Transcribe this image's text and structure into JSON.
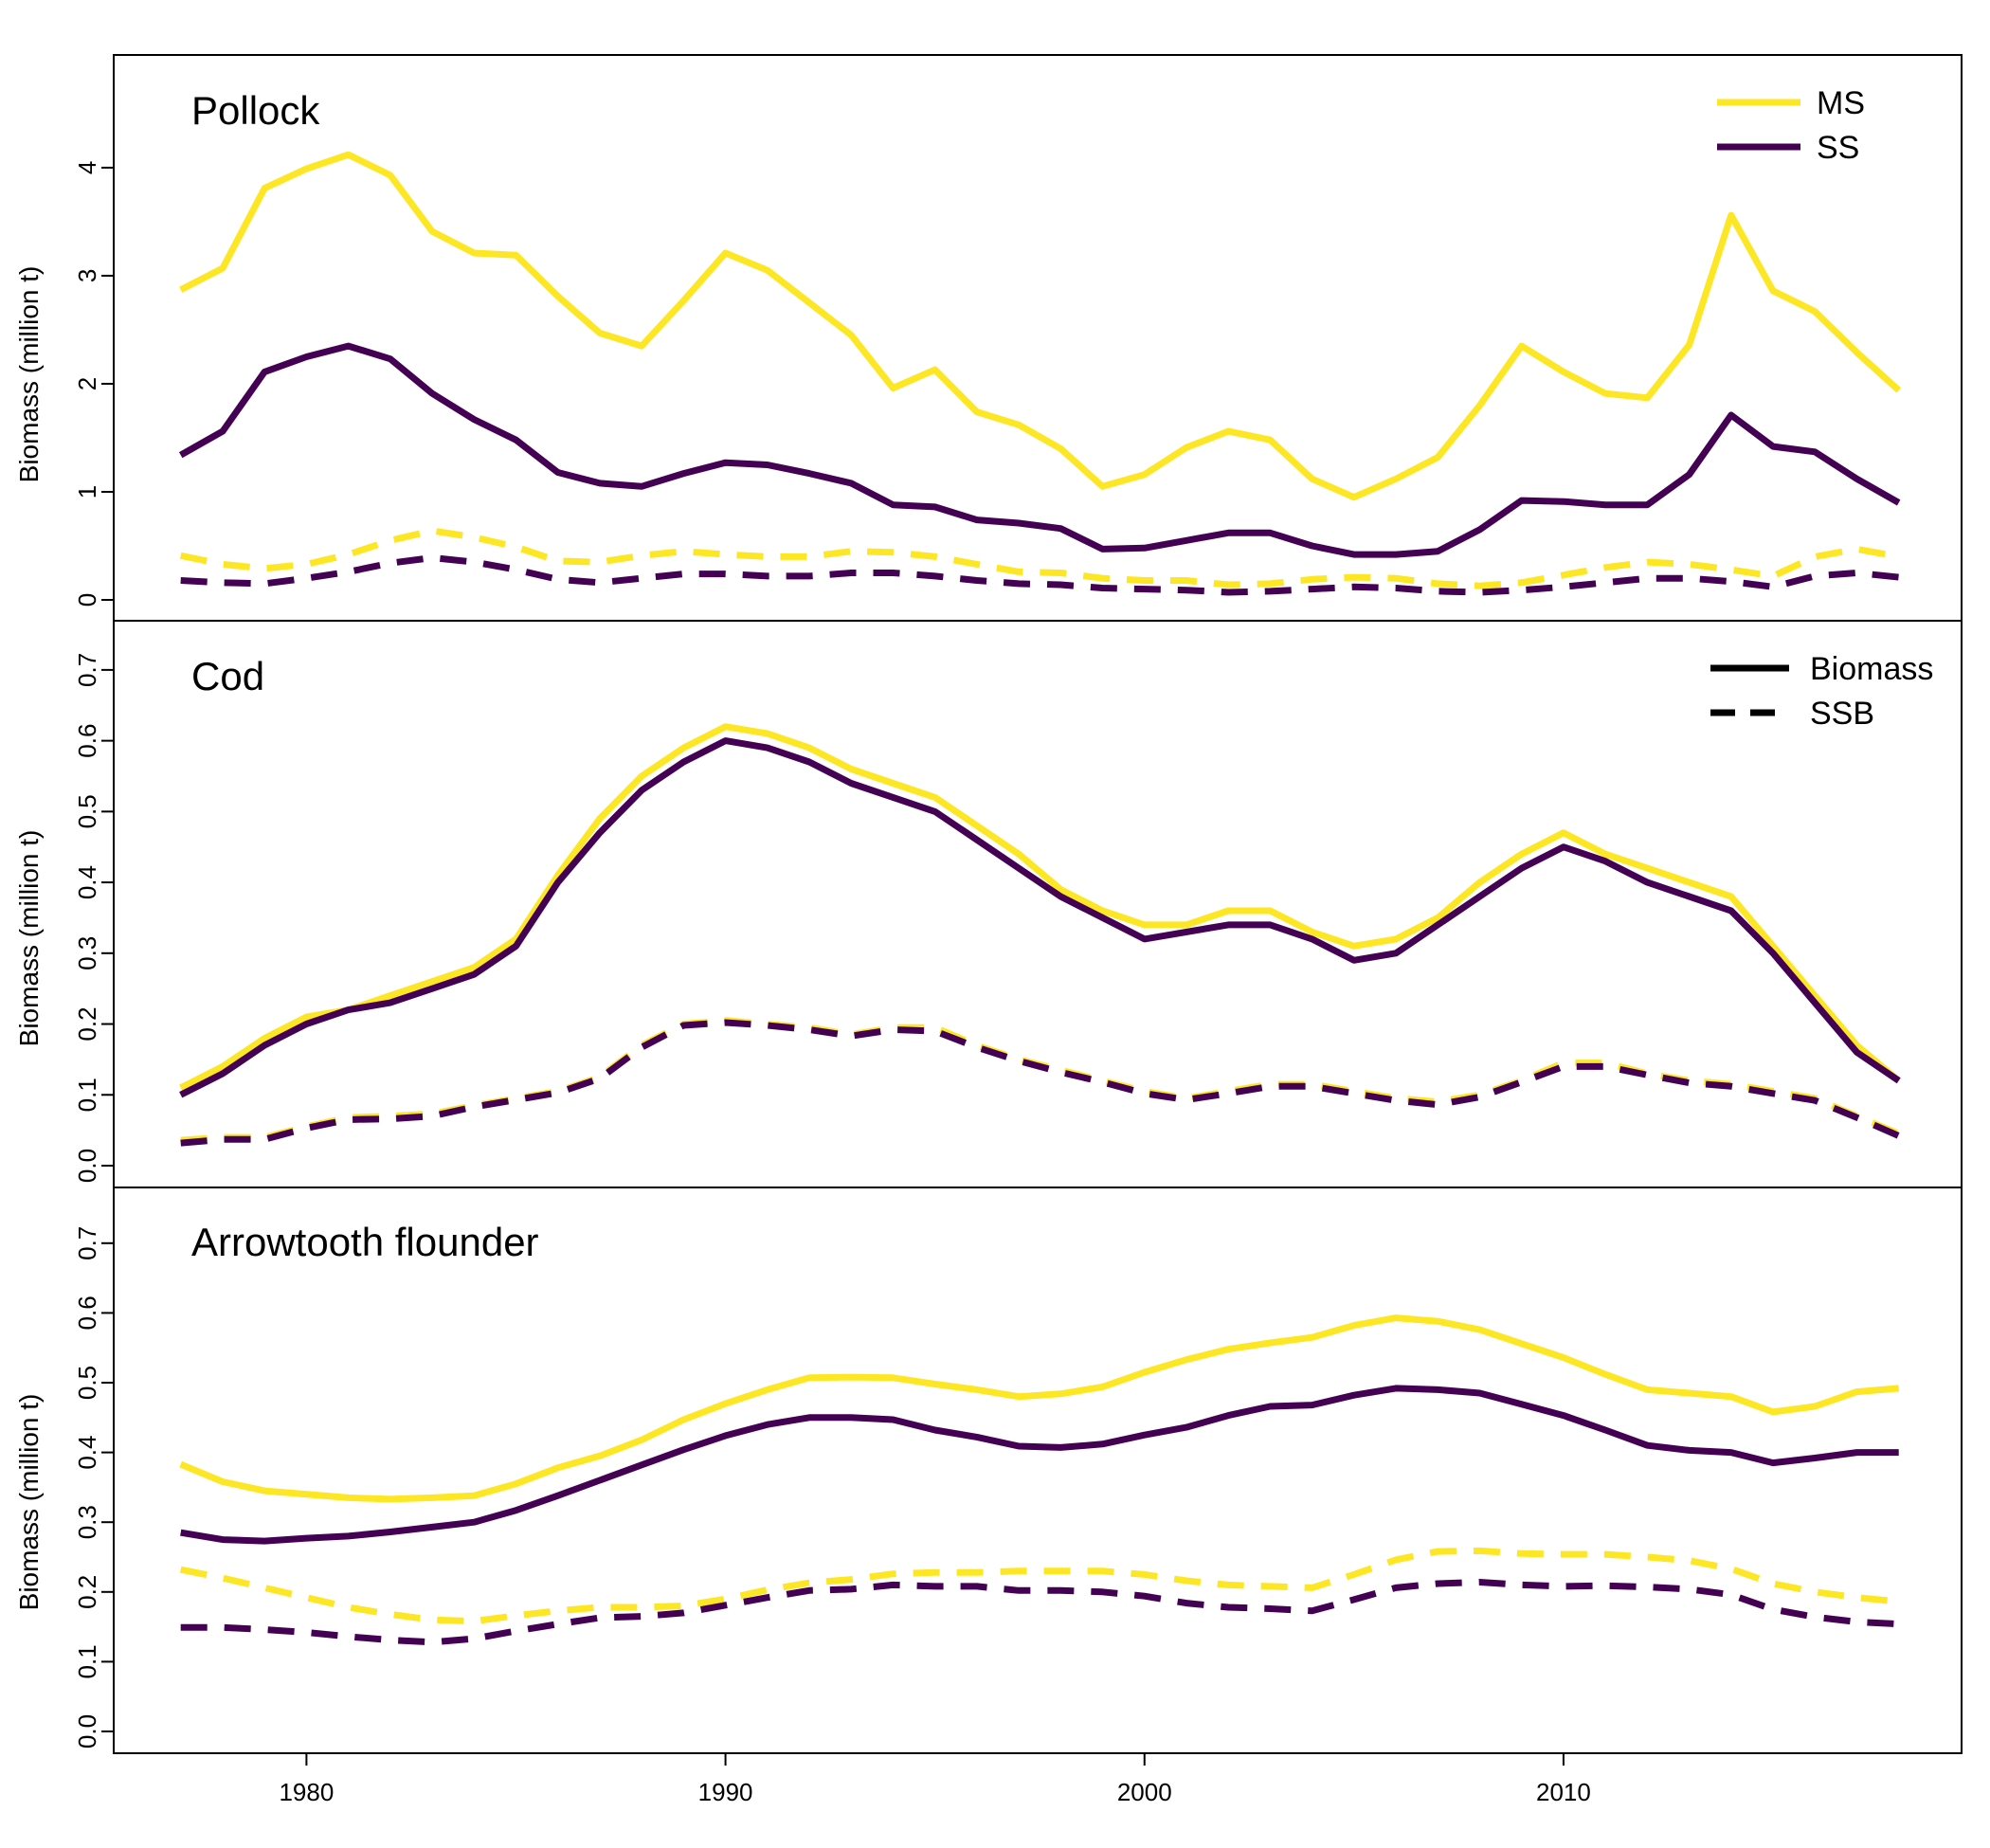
{
  "chart_data": {
    "type": "line",
    "colors": {
      "MS": "#FDE725",
      "SS": "#440154"
    },
    "xlim": [
      1975.4,
      2019.5
    ],
    "x_ticks": [
      1980,
      1990,
      2000,
      2010
    ],
    "x": [
      1977,
      1978,
      1979,
      1980,
      1981,
      1982,
      1983,
      1984,
      1985,
      1986,
      1987,
      1988,
      1989,
      1990,
      1991,
      1992,
      1993,
      1994,
      1995,
      1996,
      1997,
      1998,
      1999,
      2000,
      2001,
      2002,
      2003,
      2004,
      2005,
      2006,
      2007,
      2008,
      2009,
      2010,
      2011,
      2012,
      2013,
      2014,
      2015,
      2016,
      2017,
      2018
    ],
    "legends": {
      "model": {
        "placement": "top-right",
        "entries": [
          {
            "label": "MS",
            "style": "solid",
            "color": "#FDE725"
          },
          {
            "label": "SS",
            "style": "solid",
            "color": "#440154"
          }
        ]
      },
      "metric": {
        "placement": "top-right",
        "entries": [
          {
            "label": "Biomass",
            "style": "solid",
            "color": "#000000"
          },
          {
            "label": "SSB",
            "style": "dashed",
            "color": "#000000"
          }
        ]
      }
    },
    "panels": [
      {
        "title": "Pollock",
        "ylabel": "Biomass (million t)",
        "ylim": [
          0,
          4.85
        ],
        "yticks": [
          "0",
          "1",
          "2",
          "3",
          "4"
        ],
        "series": [
          {
            "name": "MS",
            "line": "Biomass",
            "values": [
              2.87,
              3.07,
              3.81,
              3.99,
              4.12,
              3.93,
              3.41,
              3.21,
              3.19,
              2.81,
              2.47,
              2.35,
              2.77,
              3.21,
              3.05,
              2.75,
              2.45,
              1.96,
              2.13,
              1.74,
              1.62,
              1.4,
              1.05,
              1.16,
              1.41,
              1.56,
              1.48,
              1.12,
              0.95,
              1.12,
              1.32,
              1.8,
              2.35,
              2.11,
              1.91,
              1.87,
              2.36,
              3.56,
              2.86,
              2.67,
              2.29,
              1.94
            ]
          },
          {
            "name": "SS",
            "line": "Biomass",
            "values": [
              1.34,
              1.56,
              2.11,
              2.25,
              2.35,
              2.23,
              1.91,
              1.67,
              1.48,
              1.18,
              1.08,
              1.05,
              1.17,
              1.27,
              1.25,
              1.17,
              1.08,
              0.88,
              0.86,
              0.74,
              0.71,
              0.66,
              0.47,
              0.48,
              0.55,
              0.62,
              0.62,
              0.5,
              0.42,
              0.42,
              0.45,
              0.65,
              0.92,
              0.91,
              0.88,
              0.88,
              1.16,
              1.71,
              1.42,
              1.37,
              1.12,
              0.9
            ]
          },
          {
            "name": "MS",
            "line": "SSB",
            "values": [
              0.41,
              0.33,
              0.29,
              0.33,
              0.42,
              0.55,
              0.64,
              0.58,
              0.49,
              0.36,
              0.35,
              0.41,
              0.45,
              0.42,
              0.4,
              0.4,
              0.45,
              0.44,
              0.4,
              0.33,
              0.26,
              0.25,
              0.2,
              0.18,
              0.18,
              0.14,
              0.15,
              0.19,
              0.21,
              0.2,
              0.15,
              0.13,
              0.16,
              0.23,
              0.3,
              0.35,
              0.33,
              0.28,
              0.22,
              0.4,
              0.47,
              0.4
            ]
          },
          {
            "name": "SS",
            "line": "SSB",
            "values": [
              0.18,
              0.16,
              0.15,
              0.2,
              0.26,
              0.34,
              0.39,
              0.35,
              0.28,
              0.19,
              0.16,
              0.2,
              0.24,
              0.24,
              0.22,
              0.22,
              0.25,
              0.25,
              0.22,
              0.18,
              0.15,
              0.14,
              0.11,
              0.1,
              0.09,
              0.07,
              0.08,
              0.1,
              0.12,
              0.11,
              0.08,
              0.07,
              0.09,
              0.12,
              0.16,
              0.2,
              0.2,
              0.17,
              0.12,
              0.22,
              0.25,
              0.21
            ]
          }
        ]
      },
      {
        "title": "Cod",
        "ylabel": "Biomass (million t)",
        "ylim": [
          0,
          0.74
        ],
        "yticks": [
          "0.0",
          "0.1",
          "0.2",
          "0.3",
          "0.4",
          "0.5",
          "0.6",
          "0.7"
        ],
        "series": [
          {
            "name": "MS",
            "line": "Biomass",
            "values": [
              0.11,
              0.14,
              0.18,
              0.21,
              0.22,
              0.24,
              0.26,
              0.28,
              0.32,
              0.41,
              0.49,
              0.55,
              0.59,
              0.62,
              0.61,
              0.59,
              0.56,
              0.54,
              0.52,
              0.48,
              0.44,
              0.39,
              0.36,
              0.34,
              0.34,
              0.36,
              0.36,
              0.33,
              0.31,
              0.32,
              0.35,
              0.4,
              0.44,
              0.47,
              0.44,
              0.42,
              0.4,
              0.38,
              0.31,
              0.24,
              0.17,
              0.12
            ]
          },
          {
            "name": "SS",
            "line": "Biomass",
            "values": [
              0.1,
              0.13,
              0.17,
              0.2,
              0.22,
              0.23,
              0.25,
              0.27,
              0.31,
              0.4,
              0.47,
              0.53,
              0.57,
              0.6,
              0.59,
              0.57,
              0.54,
              0.52,
              0.5,
              0.46,
              0.42,
              0.38,
              0.35,
              0.32,
              0.33,
              0.34,
              0.34,
              0.32,
              0.29,
              0.3,
              0.34,
              0.38,
              0.42,
              0.45,
              0.43,
              0.4,
              0.38,
              0.36,
              0.3,
              0.23,
              0.16,
              0.12
            ]
          },
          {
            "name": "MS",
            "line": "SSB",
            "values": [
              0.036,
              0.04,
              0.04,
              0.055,
              0.068,
              0.07,
              0.073,
              0.085,
              0.095,
              0.105,
              0.125,
              0.17,
              0.2,
              0.205,
              0.2,
              0.195,
              0.185,
              0.195,
              0.195,
              0.17,
              0.15,
              0.135,
              0.12,
              0.105,
              0.095,
              0.105,
              0.115,
              0.115,
              0.105,
              0.095,
              0.09,
              0.1,
              0.12,
              0.145,
              0.145,
              0.13,
              0.12,
              0.115,
              0.105,
              0.095,
              0.07,
              0.045
            ]
          },
          {
            "name": "SS",
            "line": "SSB",
            "values": [
              0.032,
              0.037,
              0.037,
              0.053,
              0.065,
              0.066,
              0.07,
              0.083,
              0.093,
              0.103,
              0.123,
              0.167,
              0.198,
              0.202,
              0.198,
              0.192,
              0.183,
              0.192,
              0.19,
              0.167,
              0.148,
              0.132,
              0.118,
              0.102,
              0.093,
              0.102,
              0.112,
              0.112,
              0.102,
              0.092,
              0.086,
              0.097,
              0.118,
              0.14,
              0.14,
              0.128,
              0.117,
              0.112,
              0.102,
              0.092,
              0.068,
              0.042
            ]
          }
        ]
      },
      {
        "title": "Arrowtooth flounder",
        "ylabel": "Biomass (million t)",
        "ylim": [
          0,
          0.75
        ],
        "yticks": [
          "0.0",
          "0.1",
          "0.2",
          "0.3",
          "0.4",
          "0.5",
          "0.6",
          "0.7"
        ],
        "series": [
          {
            "name": "MS",
            "line": "Biomass",
            "values": [
              0.383,
              0.358,
              0.345,
              0.34,
              0.335,
              0.333,
              0.335,
              0.338,
              0.355,
              0.378,
              0.395,
              0.418,
              0.447,
              0.47,
              0.49,
              0.507,
              0.508,
              0.507,
              0.498,
              0.49,
              0.48,
              0.484,
              0.494,
              0.515,
              0.533,
              0.548,
              0.557,
              0.565,
              0.582,
              0.593,
              0.588,
              0.576,
              0.556,
              0.536,
              0.512,
              0.49,
              0.485,
              0.48,
              0.458,
              0.466,
              0.487,
              0.492
            ]
          },
          {
            "name": "SS",
            "line": "Biomass",
            "values": [
              0.285,
              0.275,
              0.273,
              0.277,
              0.28,
              0.286,
              0.293,
              0.3,
              0.317,
              0.338,
              0.36,
              0.382,
              0.404,
              0.424,
              0.44,
              0.45,
              0.45,
              0.447,
              0.432,
              0.422,
              0.409,
              0.407,
              0.412,
              0.425,
              0.436,
              0.453,
              0.466,
              0.468,
              0.482,
              0.492,
              0.49,
              0.485,
              0.469,
              0.453,
              0.432,
              0.41,
              0.403,
              0.4,
              0.385,
              0.392,
              0.4,
              0.4
            ]
          },
          {
            "name": "MS",
            "line": "SSB",
            "values": [
              0.232,
              0.22,
              0.206,
              0.192,
              0.178,
              0.168,
              0.16,
              0.158,
              0.166,
              0.173,
              0.178,
              0.178,
              0.18,
              0.19,
              0.203,
              0.213,
              0.218,
              0.226,
              0.228,
              0.228,
              0.23,
              0.23,
              0.23,
              0.225,
              0.216,
              0.21,
              0.208,
              0.206,
              0.225,
              0.246,
              0.258,
              0.259,
              0.255,
              0.254,
              0.254,
              0.25,
              0.245,
              0.233,
              0.212,
              0.2,
              0.192,
              0.186
            ]
          },
          {
            "name": "SS",
            "line": "SSB",
            "values": [
              0.149,
              0.149,
              0.146,
              0.142,
              0.136,
              0.131,
              0.128,
              0.133,
              0.144,
              0.154,
              0.163,
              0.165,
              0.17,
              0.181,
              0.192,
              0.202,
              0.204,
              0.21,
              0.208,
              0.208,
              0.202,
              0.202,
              0.2,
              0.194,
              0.184,
              0.178,
              0.176,
              0.173,
              0.189,
              0.206,
              0.212,
              0.214,
              0.21,
              0.208,
              0.209,
              0.207,
              0.204,
              0.196,
              0.175,
              0.164,
              0.157,
              0.154
            ]
          }
        ]
      }
    ]
  }
}
